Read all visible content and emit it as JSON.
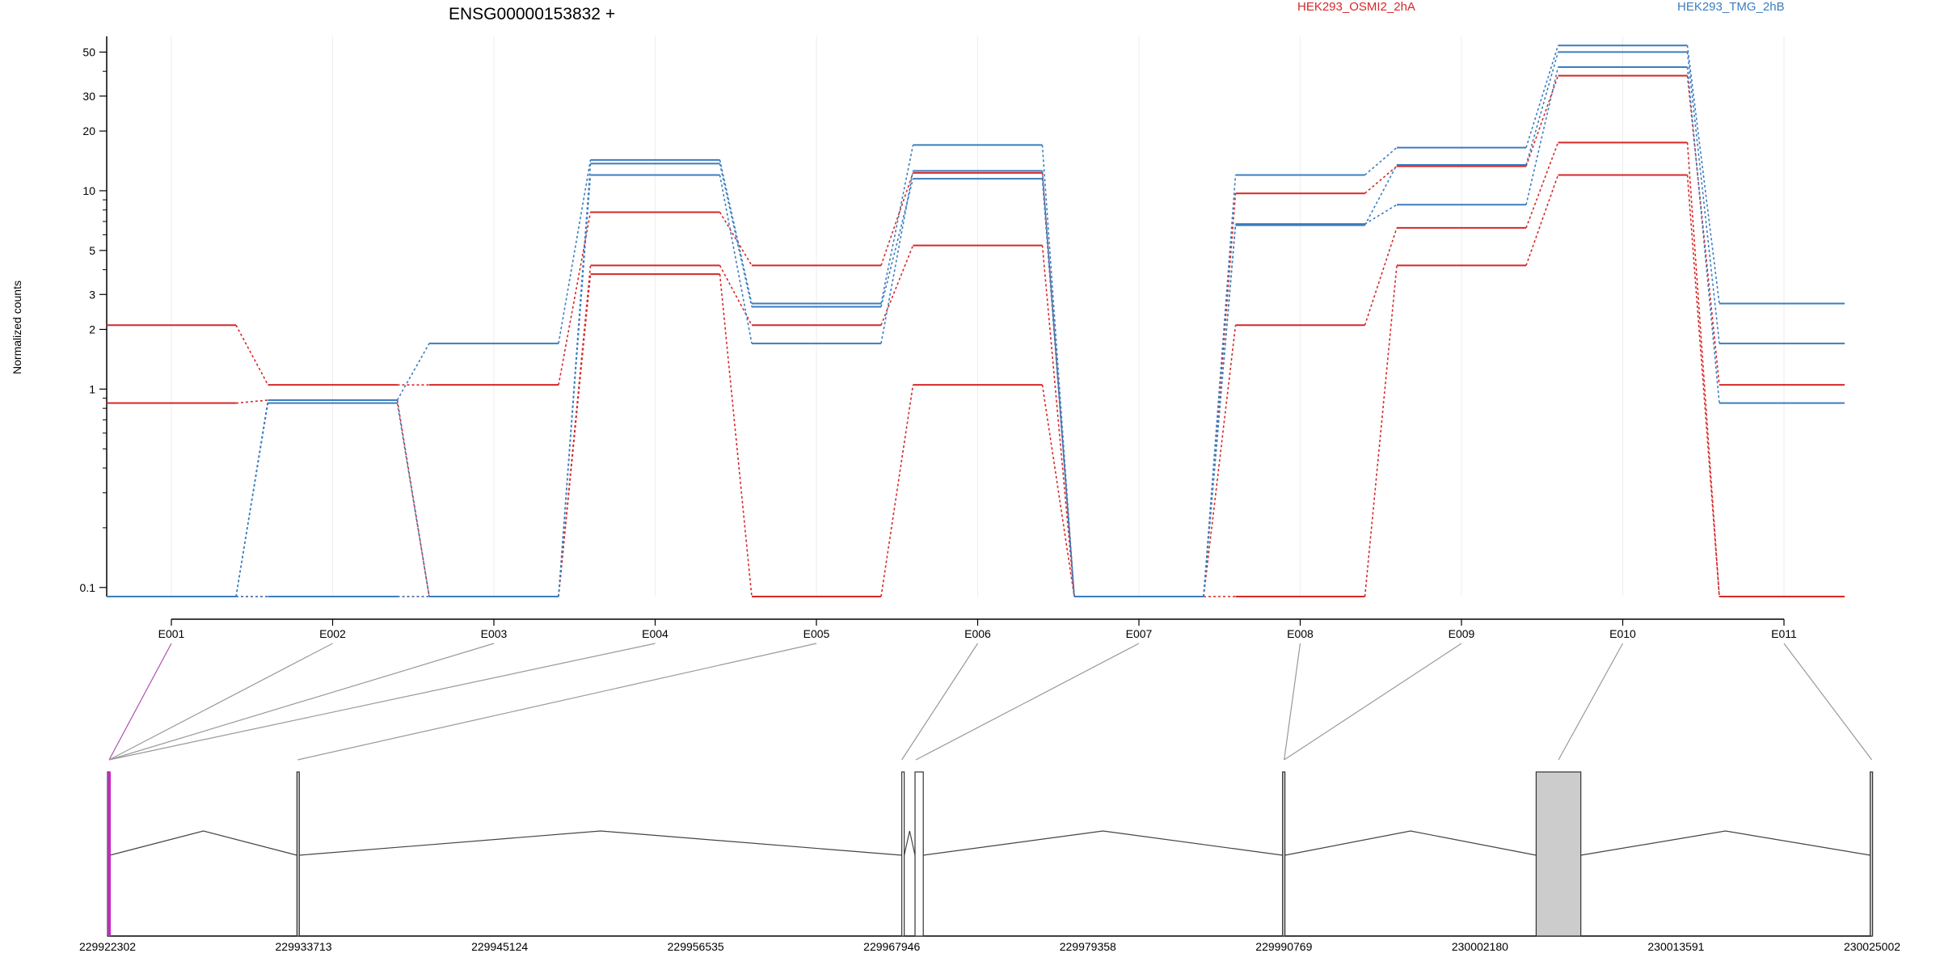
{
  "colors": {
    "group_a": "#d62728",
    "group_b": "#3b7dbe",
    "link": "#999999",
    "link_highlight": "#b04fb0",
    "exon_fill": "#cccccc",
    "highlight_exon": "#cc22cc",
    "gene_line": "#444444"
  },
  "chart_data": {
    "type": "line",
    "title": "ENSG00000153832 +",
    "ylabel": "Normalized counts",
    "y_scale": "log",
    "ylim": [
      0.09,
      60
    ],
    "y_ticks": [
      0.1,
      1,
      2,
      3,
      5,
      10,
      20,
      30,
      50
    ],
    "y_tick_labels": [
      "0.1",
      "1",
      "2",
      "3",
      "5",
      "10",
      "20",
      "30",
      "50"
    ],
    "grid": true,
    "legend_position": "top",
    "categories": [
      "E001",
      "E002",
      "E003",
      "E004",
      "E005",
      "E006",
      "E007",
      "E008",
      "E009",
      "E010",
      "E011"
    ],
    "series": [
      {
        "name": "HEK293_OSMI2_2hA",
        "color": "#d62728",
        "values": [
          2.1,
          1.05,
          1.05,
          7.8,
          4.2,
          12.3,
          0.08,
          9.7,
          13.3,
          38.0,
          1.05
        ]
      },
      {
        "name": "HEK293_OSMI2_2hA",
        "color": "#d62728",
        "values": [
          0.85,
          0.88,
          0.08,
          4.2,
          2.1,
          5.3,
          0.08,
          2.1,
          6.5,
          17.5,
          0.08
        ]
      },
      {
        "name": "HEK293_OSMI2_2hA",
        "color": "#d62728",
        "values": [
          0.08,
          0.08,
          0.08,
          3.8,
          0.08,
          1.05,
          0.08,
          0.08,
          4.2,
          12.0,
          0.08
        ]
      },
      {
        "name": "HEK293_TMG_2hB",
        "color": "#3b7dbe",
        "values": [
          0.08,
          0.88,
          1.7,
          14.3,
          2.7,
          17.0,
          0.08,
          12.0,
          16.5,
          54.0,
          2.7
        ]
      },
      {
        "name": "HEK293_TMG_2hB",
        "color": "#3b7dbe",
        "values": [
          0.08,
          0.85,
          0.08,
          13.7,
          2.6,
          11.5,
          0.08,
          6.7,
          13.5,
          50.0,
          1.7
        ]
      },
      {
        "name": "HEK293_TMG_2hB",
        "color": "#3b7dbe",
        "values": [
          0.08,
          0.08,
          0.08,
          12.0,
          1.7,
          12.6,
          0.08,
          6.8,
          8.5,
          42.0,
          0.85
        ]
      }
    ],
    "genomic_axis": {
      "tick_labels": [
        "229922302",
        "229933713",
        "229945124",
        "229956535",
        "229967946",
        "229979358",
        "229990769",
        "230002180",
        "230013591",
        "230025002"
      ],
      "start": 229922302,
      "end": 230025002,
      "exon_starts": [
        229922302,
        229933325,
        229968530,
        229969300,
        229990690,
        230005450,
        230024890
      ],
      "exon_ends": [
        229922412,
        229933450,
        229968610,
        229969780,
        229990800,
        230008050,
        230025002
      ],
      "exon_filled": [
        true,
        true,
        false,
        false,
        true,
        true,
        true
      ]
    }
  }
}
